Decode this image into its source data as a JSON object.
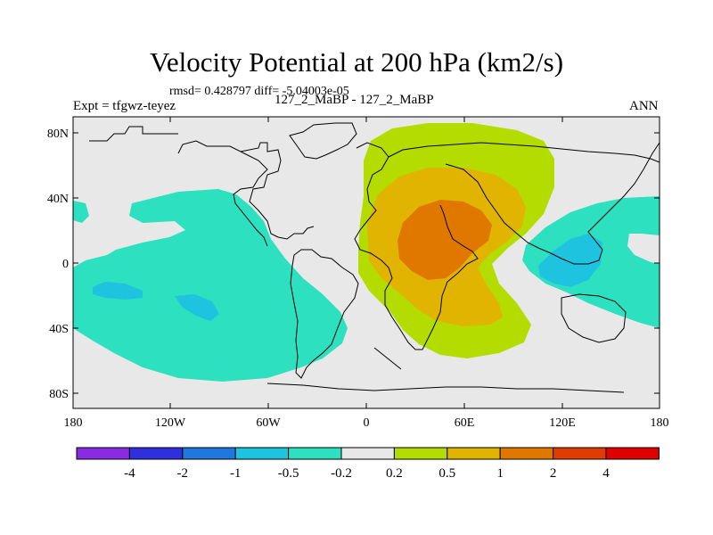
{
  "title": "Velocity Potential at 200 hPa (km2/s)",
  "stats": "rmsd= 0.428797 diff= -5.04003e-05",
  "expt": "Expt = tfgwz-teyez",
  "case": "127_2_MaBP - 127_2_MaBP",
  "season": "ANN",
  "lat_ticks": [
    "80N",
    "40N",
    "0",
    "40S",
    "80S"
  ],
  "lon_ticks": [
    "180",
    "120W",
    "60W",
    "0",
    "60E",
    "120E",
    "180"
  ],
  "colorbar": {
    "colors": [
      "#8a2be2",
      "#2f2fe0",
      "#1e78e0",
      "#1ec3e0",
      "#2de0c0",
      "#e8e8e8",
      "#b4dc00",
      "#e0b400",
      "#e07800",
      "#e03c00",
      "#e00000"
    ],
    "labels": [
      "-4",
      "-2",
      "-1",
      "-0.5",
      "-0.2",
      "0.2",
      "0.5",
      "1",
      "2",
      "4"
    ]
  },
  "map_bg": "#e8e8e8"
}
